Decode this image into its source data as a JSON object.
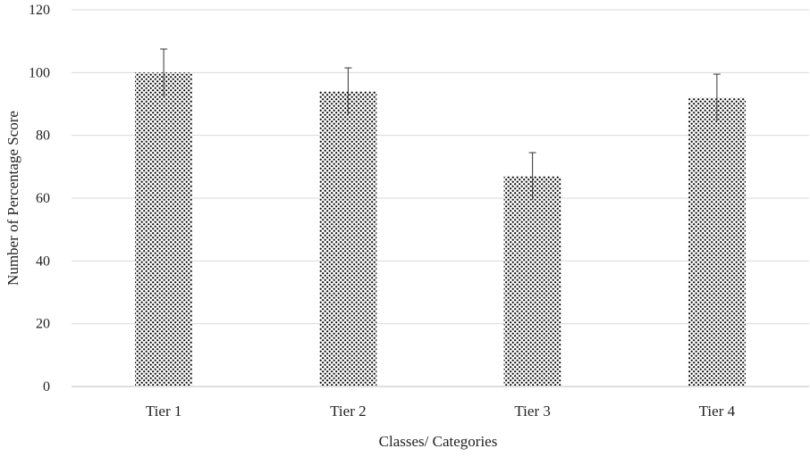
{
  "chart_data": {
    "type": "bar",
    "categories": [
      "Tier 1",
      "Tier 2",
      "Tier 3",
      "Tier 4"
    ],
    "values": [
      100,
      94,
      67,
      92
    ],
    "error_bars": [
      7.5,
      7.5,
      7.5,
      7.5
    ],
    "title": "",
    "xlabel": "Classes/ Categories",
    "ylabel": "Number of Percentage Score",
    "ylim": [
      0,
      120
    ],
    "yticks": [
      0,
      20,
      40,
      60,
      80,
      100,
      120
    ],
    "grid": true,
    "legend": "none",
    "bar_fill": "dotted pattern, black dots on white",
    "colors": {
      "dots": "#000000",
      "background": "#ffffff"
    }
  }
}
